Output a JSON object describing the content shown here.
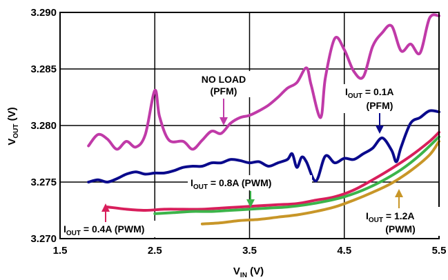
{
  "chart_data": {
    "type": "line",
    "title": "",
    "xlabel": {
      "main": "V",
      "sub": "IN",
      "unit": " (V)"
    },
    "ylabel": {
      "main": "V",
      "sub": "OUT",
      "unit": " (V)"
    },
    "xlim": [
      1.5,
      5.5
    ],
    "ylim": [
      3.27,
      3.29
    ],
    "x_ticks": [
      {
        "value": 1.5,
        "label": "1.5"
      },
      {
        "value": 2.5,
        "label": "2.5"
      },
      {
        "value": 3.5,
        "label": "3.5"
      },
      {
        "value": 4.5,
        "label": "4.5"
      },
      {
        "value": 5.5,
        "label": "5.5"
      }
    ],
    "y_ticks": [
      {
        "value": 3.27,
        "label": "3.270"
      },
      {
        "value": 3.275,
        "label": "3.275"
      },
      {
        "value": 3.28,
        "label": "3.280"
      },
      {
        "value": 3.285,
        "label": "3.285"
      },
      {
        "value": 3.29,
        "label": "3.290"
      }
    ],
    "grid": true,
    "series": [
      {
        "key": "no-load",
        "color": "#c03aa8",
        "x": [
          1.8,
          1.9,
          2.0,
          2.1,
          2.2,
          2.3,
          2.4,
          2.5,
          2.55,
          2.65,
          2.8,
          2.9,
          3.0,
          3.1,
          3.2,
          3.3,
          3.4,
          3.5,
          3.6,
          3.7,
          3.8,
          3.9,
          4.0,
          4.1,
          4.15,
          4.25,
          4.3,
          4.4,
          4.5,
          4.6,
          4.7,
          4.8,
          4.9,
          5.0,
          5.1,
          5.2,
          5.3,
          5.4,
          5.5
        ],
        "y": [
          3.2782,
          3.2792,
          3.2788,
          3.2779,
          3.2786,
          3.2781,
          3.2792,
          3.2831,
          3.2808,
          3.2787,
          3.2786,
          3.2779,
          3.2787,
          3.2795,
          3.2793,
          3.2802,
          3.2807,
          3.2809,
          3.2813,
          3.2818,
          3.2825,
          3.2833,
          3.2838,
          3.2851,
          3.2836,
          3.2807,
          3.2842,
          3.2877,
          3.2867,
          3.2848,
          3.2843,
          3.287,
          3.2882,
          3.2888,
          3.2866,
          3.2872,
          3.2864,
          3.2895,
          3.2897
        ]
      },
      {
        "key": "iout-0.1a",
        "color": "#0a0a8c",
        "x": [
          1.8,
          1.9,
          2.0,
          2.1,
          2.2,
          2.3,
          2.4,
          2.5,
          2.6,
          2.7,
          2.8,
          2.9,
          3.0,
          3.1,
          3.2,
          3.3,
          3.4,
          3.5,
          3.6,
          3.7,
          3.8,
          3.9,
          3.95,
          4.0,
          4.05,
          4.1,
          4.2,
          4.3,
          4.4,
          4.5,
          4.6,
          4.7,
          4.8,
          4.9,
          5.0,
          5.05,
          5.1,
          5.2,
          5.3,
          5.4,
          5.5
        ],
        "y": [
          3.275,
          3.2752,
          3.275,
          3.2753,
          3.2757,
          3.2759,
          3.2757,
          3.2758,
          3.2758,
          3.276,
          3.2763,
          3.2764,
          3.2764,
          3.2767,
          3.2767,
          3.277,
          3.2769,
          3.2767,
          3.2768,
          3.2764,
          3.2767,
          3.277,
          3.2775,
          3.2763,
          3.2772,
          3.2768,
          3.2751,
          3.2773,
          3.2767,
          3.2771,
          3.277,
          3.2775,
          3.278,
          3.2789,
          3.2778,
          3.2768,
          3.2781,
          3.2802,
          3.2807,
          3.2813,
          3.2812
        ]
      },
      {
        "key": "iout-0.4a",
        "color": "#d81e5b",
        "x": [
          2.0,
          2.2,
          2.4,
          2.6,
          2.8,
          3.0,
          3.2,
          3.4,
          3.6,
          3.8,
          4.0,
          4.2,
          4.4,
          4.6,
          4.8,
          5.0,
          5.2,
          5.4,
          5.5
        ],
        "y": [
          3.2728,
          3.2726,
          3.2725,
          3.2726,
          3.2726,
          3.2726,
          3.2727,
          3.2728,
          3.2729,
          3.273,
          3.2731,
          3.2734,
          3.2737,
          3.2743,
          3.2752,
          3.2762,
          3.2773,
          3.2786,
          3.2794
        ]
      },
      {
        "key": "iout-0.8a",
        "color": "#3cb44a",
        "x": [
          2.5,
          2.7,
          2.9,
          3.1,
          3.3,
          3.5,
          3.7,
          3.9,
          4.1,
          4.3,
          4.5,
          4.7,
          4.9,
          5.1,
          5.3,
          5.5
        ],
        "y": [
          3.2722,
          3.2723,
          3.2724,
          3.2724,
          3.2725,
          3.2726,
          3.2727,
          3.2728,
          3.273,
          3.2733,
          3.2737,
          3.2743,
          3.2751,
          3.2761,
          3.2774,
          3.279
        ]
      },
      {
        "key": "iout-1.2a",
        "color": "#c89628",
        "x": [
          3.0,
          3.2,
          3.4,
          3.6,
          3.8,
          4.0,
          4.2,
          4.4,
          4.6,
          4.8,
          5.0,
          5.2,
          5.4,
          5.5
        ],
        "y": [
          3.2713,
          3.2714,
          3.2716,
          3.2717,
          3.2719,
          3.2721,
          3.2724,
          3.2728,
          3.2734,
          3.2741,
          3.2749,
          3.276,
          3.2774,
          3.2786
        ]
      }
    ],
    "annotations": [
      {
        "key": "no-load",
        "line1": "NO LOAD",
        "line2": "(PFM)",
        "color": "#c03aa8"
      },
      {
        "key": "iout-0.1a",
        "line1_main": "I",
        "line1_sub": "OUT",
        "line1_rest": " = 0.1A",
        "line2": "(PFM)",
        "color": "#0a0a8c"
      },
      {
        "key": "iout-0.8a",
        "line1_main": "I",
        "line1_sub": "OUT",
        "line1_rest": " = 0.8A (PWM)",
        "color": "#3cb44a"
      },
      {
        "key": "iout-0.4a",
        "line1_main": "I",
        "line1_sub": "OUT",
        "line1_rest": " = 0.4A (PWM)",
        "color": "#d81e5b"
      },
      {
        "key": "iout-1.2a",
        "line1_main": "I",
        "line1_sub": "OUT",
        "line1_rest": " = 1.2A",
        "line2": "(PWM)",
        "color": "#c89628"
      }
    ]
  }
}
